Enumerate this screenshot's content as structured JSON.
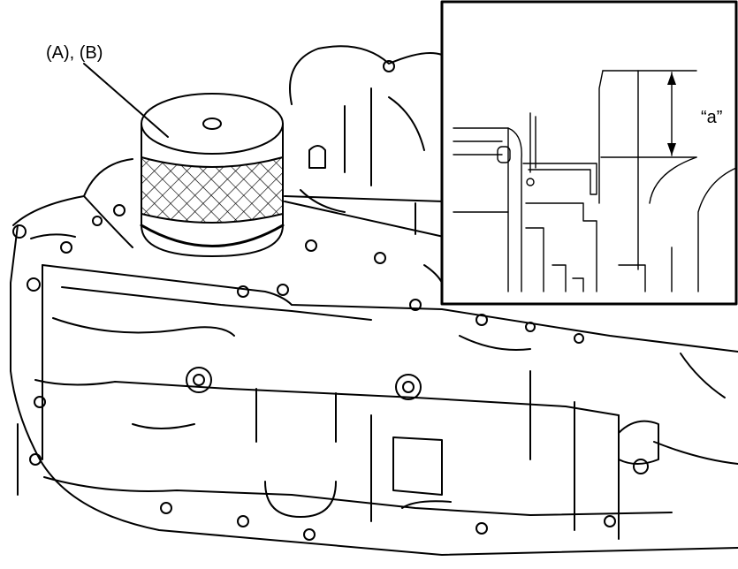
{
  "callout_part_label": "(A), (B)",
  "dimension_label": "“a”"
}
